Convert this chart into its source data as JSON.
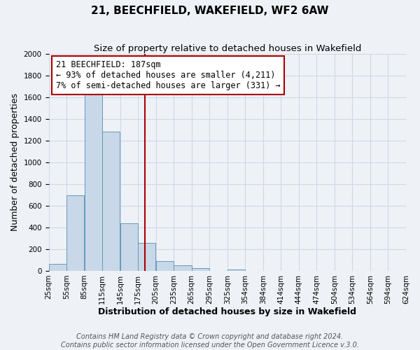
{
  "title": "21, BEECHFIELD, WAKEFIELD, WF2 6AW",
  "subtitle": "Size of property relative to detached houses in Wakefield",
  "xlabel": "Distribution of detached houses by size in Wakefield",
  "ylabel": "Number of detached properties",
  "bar_heights": [
    65,
    695,
    1635,
    1280,
    440,
    255,
    90,
    50,
    25,
    0,
    10,
    0,
    0,
    0,
    0,
    0,
    0,
    0,
    0,
    0
  ],
  "tick_labels": [
    "25sqm",
    "55sqm",
    "85sqm",
    "115sqm",
    "145sqm",
    "175sqm",
    "205sqm",
    "235sqm",
    "265sqm",
    "295sqm",
    "325sqm",
    "354sqm",
    "384sqm",
    "414sqm",
    "444sqm",
    "474sqm",
    "504sqm",
    "534sqm",
    "564sqm",
    "594sqm",
    "624sqm"
  ],
  "bar_color": "#c8d8e8",
  "bar_edge_color": "#6699bb",
  "ylim": [
    0,
    2000
  ],
  "yticks": [
    0,
    200,
    400,
    600,
    800,
    1000,
    1200,
    1400,
    1600,
    1800,
    2000
  ],
  "property_line_color": "#aa0000",
  "annotation_line1": "21 BEECHFIELD: 187sqm",
  "annotation_line2": "← 93% of detached houses are smaller (4,211)",
  "annotation_line3": "7% of semi-detached houses are larger (331) →",
  "annotation_box_color": "#aa0000",
  "footer_line1": "Contains HM Land Registry data © Crown copyright and database right 2024.",
  "footer_line2": "Contains public sector information licensed under the Open Government Licence v.3.0.",
  "background_color": "#eef2f7",
  "grid_color": "#d0d8e4",
  "title_fontsize": 11,
  "subtitle_fontsize": 9.5,
  "axis_label_fontsize": 9,
  "tick_fontsize": 7.5,
  "annotation_fontsize": 8.5,
  "footer_fontsize": 7
}
